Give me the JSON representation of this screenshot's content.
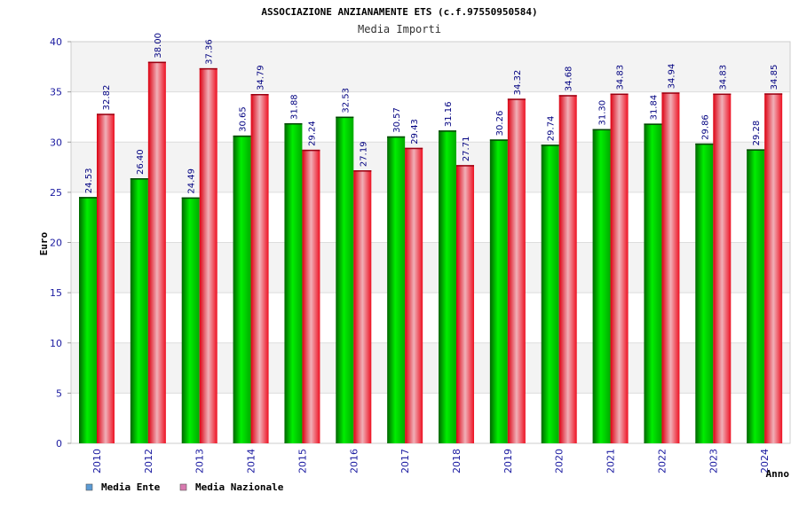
{
  "chart_data": {
    "type": "bar",
    "title": "ASSOCIAZIONE ANZIANAMENTE ETS (c.f.97550950584)",
    "subtitle": "Media Importi",
    "xlabel": "Anno",
    "ylabel": "Euro",
    "ylim": [
      0,
      40
    ],
    "yticks": [
      "0",
      "5",
      "10",
      "15",
      "20",
      "25",
      "30",
      "35",
      "40"
    ],
    "grid": true,
    "legend_position": "bottom-left",
    "categories": [
      "2010",
      "2012",
      "2013",
      "2014",
      "2015",
      "2016",
      "2017",
      "2018",
      "2019",
      "2020",
      "2021",
      "2022",
      "2023",
      "2024"
    ],
    "series": [
      {
        "name": "Media Ente",
        "legend_color": "#5b9bd5",
        "bar_color": "#00cc00",
        "values": [
          24.53,
          26.4,
          24.49,
          30.65,
          31.88,
          32.53,
          30.57,
          31.16,
          30.26,
          29.74,
          31.3,
          31.84,
          29.86,
          29.28
        ],
        "labels": [
          "24.53",
          "26.40",
          "24.49",
          "30.65",
          "31.88",
          "32.53",
          "30.57",
          "31.16",
          "30.26",
          "29.74",
          "31.30",
          "31.84",
          "29.86",
          "29.28"
        ]
      },
      {
        "name": "Media Nazionale",
        "legend_color": "#d97ab0",
        "bar_color": "#ee1122",
        "values": [
          32.82,
          38.0,
          37.36,
          34.79,
          29.24,
          27.19,
          29.43,
          27.71,
          34.32,
          34.68,
          34.83,
          34.94,
          34.83,
          34.85
        ],
        "labels": [
          "32.82",
          "38.00",
          "37.36",
          "34.79",
          "29.24",
          "27.19",
          "29.43",
          "27.71",
          "34.32",
          "34.68",
          "34.83",
          "34.94",
          "34.83",
          "34.85"
        ]
      }
    ]
  }
}
